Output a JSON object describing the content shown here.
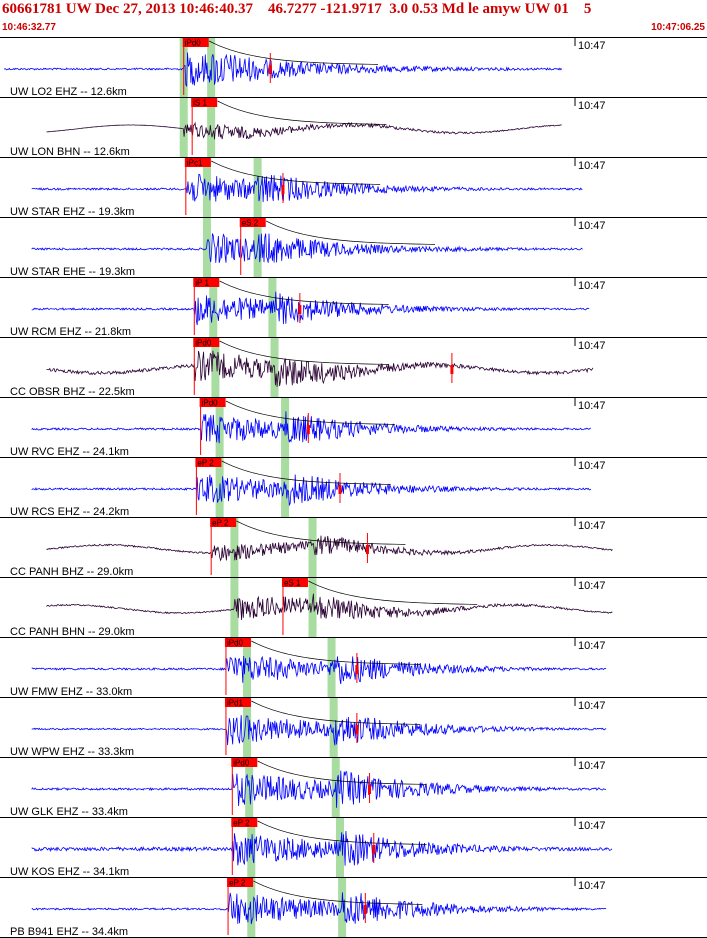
{
  "header": {
    "title": "60661781 UW Dec 27, 2013 10:46:40.37    46.7277 -121.9717  3.0 0.53 Md le amyw UW 01    5",
    "start_time": "10:46:32.77",
    "end_time": "10:47:06.25"
  },
  "colors": {
    "header_text": "#cc0000",
    "trace_blue": "#0000ff",
    "trace_dark": "#2a0033",
    "pick_box": "#ff0000",
    "theory_band": "#a8dca0",
    "coda_line": "#000000"
  },
  "chart_data": {
    "type": "line",
    "title": "60661781 UW Dec 27, 2013 10:46:40.37    46.7277 -121.9717  3.0 0.53 Md le amyw UW 01    5",
    "x_start": "10:46:32.77",
    "x_end": "10:47:06.25",
    "minute_tick": "10:47",
    "traces": [
      {
        "label": "UW LO2 EHZ -- 12.6km",
        "color": "blue",
        "pick": "iPd0",
        "pick_time": 8.7,
        "p_band": 8.7,
        "s_band": 10.0,
        "red_mark": 12.8,
        "amp": 0.55,
        "noise": 0.05,
        "end_time": 26.6
      },
      {
        "label": "UW LON BHN -- 12.6km",
        "color": "dark",
        "pick": "iS 1",
        "pick_time": 9.1,
        "p_band": 8.7,
        "s_band": 10.0,
        "red_mark": null,
        "amp": 0.25,
        "noise": 0.01,
        "end_time": 26.6
      },
      {
        "label": "UW STAR EHZ -- 19.3km",
        "color": "blue",
        "pick": "iPc1",
        "pick_time": 8.8,
        "p_band": 9.8,
        "s_band": 12.2,
        "red_mark": 13.4,
        "amp": 0.5,
        "noise": 0.06,
        "end_time": 27.6
      },
      {
        "label": "UW STAR EHE -- 19.3km",
        "color": "blue",
        "pick": "eS 2",
        "pick_time": 11.4,
        "p_band": 9.8,
        "s_band": 12.2,
        "red_mark": null,
        "amp": 0.5,
        "noise": 0.06,
        "end_time": 27.6
      },
      {
        "label": "UW RCM EHZ -- 21.8km",
        "color": "blue",
        "pick": "iP 1",
        "pick_time": 9.2,
        "p_band": 10.1,
        "s_band": 12.9,
        "red_mark": 14.2,
        "amp": 0.5,
        "noise": 0.06,
        "end_time": 27.9
      },
      {
        "label": "CC OBSR BHZ -- 22.5km",
        "color": "dark",
        "pick": "iPd0",
        "pick_time": 9.2,
        "p_band": 10.2,
        "s_band": 13.0,
        "red_mark": 21.4,
        "amp": 0.5,
        "noise": 0.1,
        "end_time": 28.1
      },
      {
        "label": "UW RVC EHZ -- 24.1km",
        "color": "blue",
        "pick": "iPd0",
        "pick_time": 9.5,
        "p_band": 10.4,
        "s_band": 13.5,
        "red_mark": 14.6,
        "amp": 0.5,
        "noise": 0.06,
        "end_time": 28.0
      },
      {
        "label": "UW RCS EHZ -- 24.2km",
        "color": "blue",
        "pick": "eP 2",
        "pick_time": 9.3,
        "p_band": 10.4,
        "s_band": 13.5,
        "red_mark": 16.1,
        "amp": 0.5,
        "noise": 0.06,
        "end_time": 28.0
      },
      {
        "label": "CC PANH BHZ -- 29.0km",
        "color": "dark",
        "pick": "eP 2",
        "pick_time": 10.0,
        "p_band": 11.1,
        "s_band": 14.8,
        "red_mark": 17.4,
        "amp": 0.3,
        "noise": 0.08,
        "end_time": 29.0
      },
      {
        "label": "CC PANH BHN -- 29.0km",
        "color": "dark",
        "pick": "eS 1",
        "pick_time": 13.4,
        "p_band": 11.1,
        "s_band": 14.8,
        "red_mark": null,
        "amp": 0.4,
        "noise": 0.05,
        "end_time": 29.0
      },
      {
        "label": "UW FMW EHZ -- 33.0km",
        "color": "blue",
        "pick": "iPd0",
        "pick_time": 10.7,
        "p_band": 11.7,
        "s_band": 15.7,
        "red_mark": 16.9,
        "amp": 0.5,
        "noise": 0.06,
        "end_time": 28.7
      },
      {
        "label": "UW WPW EHZ -- 33.3km",
        "color": "blue",
        "pick": "iPd1",
        "pick_time": 10.7,
        "p_band": 11.7,
        "s_band": 15.8,
        "red_mark": 16.9,
        "amp": 0.5,
        "noise": 0.05,
        "end_time": 28.7
      },
      {
        "label": "UW GLK EHZ -- 33.4km",
        "color": "blue",
        "pick": "iPd0",
        "pick_time": 11.0,
        "p_band": 11.8,
        "s_band": 15.9,
        "red_mark": 17.5,
        "amp": 0.55,
        "noise": 0.06,
        "end_time": 28.7
      },
      {
        "label": "UW KOS EHZ -- 34.1km",
        "color": "blue",
        "pick": "eP 2",
        "pick_time": 11.0,
        "p_band": 11.9,
        "s_band": 16.1,
        "red_mark": 17.7,
        "amp": 0.55,
        "noise": 0.1,
        "end_time": 29.0
      },
      {
        "label": "PB B941 EHZ -- 34.4km",
        "color": "blue",
        "pick": "eP 2",
        "pick_time": 10.8,
        "p_band": 11.9,
        "s_band": 16.2,
        "red_mark": 17.3,
        "amp": 0.55,
        "noise": 0.05,
        "end_time": 28.7
      }
    ]
  }
}
